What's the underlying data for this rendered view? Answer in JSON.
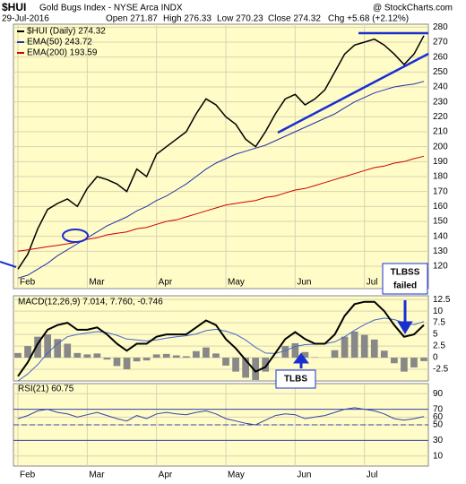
{
  "chart_data": [
    {
      "type": "line",
      "symbol": "$HUI",
      "title": "Gold Bugs Index - NYSE Arca INDX",
      "date": "29-Jul-2016",
      "quote": [
        "Open 271.87",
        "High 276.33",
        "Low 270.23",
        "Close 274.32",
        "Chg +5.68 (+2.12%)"
      ],
      "credit": "@ StockCharts.com",
      "categories": [
        "Feb",
        null,
        null,
        null,
        null,
        null,
        null,
        "Mar",
        null,
        null,
        null,
        null,
        null,
        null,
        "Apr",
        null,
        null,
        null,
        null,
        null,
        null,
        "May",
        null,
        null,
        null,
        null,
        null,
        null,
        "Jun",
        null,
        null,
        null,
        null,
        null,
        null,
        "Jul",
        null,
        null,
        null,
        null,
        null,
        null
      ],
      "series": [
        {
          "name": "$HUI (Daily) 274.32",
          "color": "#000000",
          "values": [
            118,
            128,
            145,
            158,
            162,
            165,
            160,
            172,
            180,
            178,
            175,
            170,
            185,
            180,
            195,
            200,
            205,
            210,
            222,
            232,
            228,
            220,
            215,
            205,
            200,
            210,
            222,
            232,
            235,
            228,
            232,
            238,
            250,
            262,
            268,
            270,
            272,
            268,
            262,
            255,
            262,
            274.32
          ]
        },
        {
          "name": "EMA(50) 243.72",
          "color": "#2233aa",
          "values": [
            112,
            114,
            118,
            122,
            127,
            131,
            135,
            139,
            143,
            147,
            150,
            153,
            157,
            160,
            164,
            167,
            171,
            175,
            180,
            185,
            189,
            192,
            195,
            197,
            199,
            201,
            204,
            207,
            210,
            213,
            216,
            219,
            222,
            226,
            230,
            233,
            236,
            238,
            240,
            241,
            242,
            243.72
          ]
        },
        {
          "name": "EMA(200) 193.59",
          "color": "#cc0000",
          "values": [
            130,
            131,
            132,
            133,
            134,
            135,
            136,
            138,
            139,
            141,
            142,
            143,
            145,
            146,
            148,
            150,
            151,
            153,
            155,
            157,
            159,
            161,
            162,
            163,
            164,
            166,
            167,
            169,
            171,
            172,
            174,
            176,
            178,
            180,
            182,
            184,
            186,
            187,
            189,
            190,
            192,
            193.59
          ]
        }
      ],
      "ylim": [
        105,
        282
      ],
      "yticks": [
        120,
        130,
        140,
        150,
        160,
        170,
        180,
        190,
        200,
        210,
        220,
        230,
        240,
        250,
        260,
        270,
        280
      ],
      "grid": true,
      "annotations": [
        "TLBSS",
        "failed"
      ]
    },
    {
      "type": "macd",
      "title": "MACD(12,26,9) 7.014, 7.760, -0.746",
      "series": [
        {
          "name": "MACD",
          "color": "#000000",
          "values": [
            -4,
            -1,
            3,
            6,
            7,
            7.5,
            6,
            6,
            6.5,
            5,
            3,
            1.5,
            3,
            3,
            4.5,
            5,
            5,
            5,
            6.5,
            8,
            7,
            4,
            2,
            -0.5,
            -3,
            -2,
            1,
            4,
            5.5,
            4,
            3,
            3,
            5,
            9,
            11.5,
            12,
            12,
            10,
            7,
            4.5,
            5,
            7.014
          ]
        },
        {
          "name": "Signal",
          "color": "#4466cc",
          "values": [
            -5,
            -3.5,
            -1.5,
            1,
            3,
            4.5,
            5,
            5.3,
            5.6,
            5.4,
            4.8,
            4,
            3.8,
            3.6,
            3.8,
            4.2,
            4.5,
            4.7,
            5.1,
            5.8,
            6.1,
            5.7,
            5,
            3.8,
            2.2,
            1,
            0.9,
            1.5,
            2.4,
            2.8,
            2.9,
            3,
            3.4,
            4.5,
            5.9,
            7.1,
            8.1,
            8.5,
            8.2,
            7.5,
            7.1,
            7.76
          ]
        },
        {
          "name": "Histogram",
          "color": "#888888",
          "values": [
            1,
            2.5,
            4.5,
            5,
            4,
            3,
            1,
            0.7,
            0.9,
            -0.4,
            -1.8,
            -2.5,
            -0.8,
            -0.6,
            0.7,
            0.8,
            0.5,
            0.3,
            1.4,
            2.2,
            0.9,
            -1.7,
            -3,
            -4.3,
            -4.8,
            -3,
            0.1,
            2.5,
            3.1,
            1.2,
            0.1,
            0,
            1.6,
            4.5,
            5.6,
            4.9,
            3.9,
            1.5,
            -1.2,
            -3,
            -2.1,
            -0.746
          ]
        }
      ],
      "ylim": [
        -5,
        13.3
      ],
      "yticks": [
        -2.5,
        0.0,
        2.5,
        5.0,
        7.5,
        10.0,
        12.5
      ],
      "grid": true,
      "annotations": [
        "TLBS"
      ]
    },
    {
      "type": "rsi",
      "title": "RSI(21) 60.75",
      "categories": [
        "Feb",
        null,
        null,
        null,
        null,
        null,
        null,
        "Mar",
        null,
        null,
        null,
        null,
        null,
        null,
        "Apr",
        null,
        null,
        null,
        null,
        null,
        null,
        "May",
        null,
        null,
        null,
        null,
        null,
        null,
        "Jun",
        null,
        null,
        null,
        null,
        null,
        null,
        "Jul",
        null,
        null,
        null,
        null,
        null,
        null
      ],
      "series": [
        {
          "name": "RSI",
          "color": "#3344aa",
          "values": [
            58,
            62,
            68,
            70,
            66,
            64,
            60,
            63,
            66,
            62,
            58,
            55,
            62,
            58,
            64,
            66,
            64,
            63,
            66,
            68,
            64,
            58,
            55,
            52,
            50,
            56,
            62,
            64,
            63,
            58,
            60,
            62,
            66,
            70,
            72,
            70,
            68,
            64,
            58,
            56,
            58,
            60.75
          ]
        }
      ],
      "ylim": [
        -3,
        103
      ],
      "yticks": [
        10,
        30,
        50,
        60,
        70,
        90
      ],
      "grid": true
    }
  ]
}
